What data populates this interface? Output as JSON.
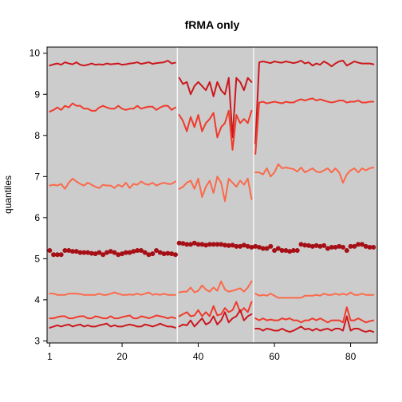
{
  "chart_data": {
    "type": "line",
    "title": "fRMA only",
    "xlabel": "",
    "ylabel": "quantiles",
    "xlim": [
      0.3,
      87
    ],
    "ylim": [
      2.95,
      10.15
    ],
    "x_ticks": [
      1,
      20,
      40,
      60,
      80
    ],
    "y_ticks": [
      3,
      4,
      5,
      6,
      7,
      8,
      9,
      10
    ],
    "x_tick_labels": [
      "1",
      "20",
      "40",
      "60",
      "80"
    ],
    "y_tick_labels": [
      "3",
      "4",
      "5",
      "6",
      "7",
      "8",
      "9",
      "10"
    ],
    "background": "#cccccc",
    "vlines": [
      34.5,
      54.5
    ],
    "vline_color": "#ffffff",
    "colors": {
      "q99": "#cb181d",
      "q90": "#ef3b2c",
      "q75": "#fb6a4a",
      "median": "#a50f15",
      "q25": "#fb6a4a",
      "q10": "#ef3b2c",
      "q01": "#cb181d"
    },
    "series": [
      {
        "key": "q99",
        "style": "line",
        "segments": [
          {
            "x_start": 1,
            "values": [
              9.7,
              9.73,
              9.75,
              9.72,
              9.78,
              9.75,
              9.73,
              9.78,
              9.72,
              9.7,
              9.72,
              9.75,
              9.72,
              9.73,
              9.72,
              9.75,
              9.73,
              9.74,
              9.75,
              9.72,
              9.73,
              9.75,
              9.76,
              9.78,
              9.74,
              9.76,
              9.78,
              9.74,
              9.76,
              9.77,
              9.78,
              9.82,
              9.75,
              9.77
            ]
          },
          {
            "x_start": 35,
            "values": [
              9.4,
              9.25,
              9.3,
              9.0,
              9.2,
              9.3,
              9.2,
              9.1,
              9.3,
              8.95,
              9.3,
              9.1,
              9.0,
              9.4,
              7.95,
              9.4,
              9.3,
              9.1,
              9.4,
              9.3
            ]
          },
          {
            "x_start": 55,
            "values": [
              7.8,
              9.78,
              9.8,
              9.78,
              9.76,
              9.8,
              9.78,
              9.77,
              9.8,
              9.78,
              9.76,
              9.78,
              9.82,
              9.75,
              9.78,
              9.7,
              9.75,
              9.72,
              9.8,
              9.75,
              9.68,
              9.75,
              9.8,
              9.82,
              9.7,
              9.75,
              9.8,
              9.77,
              9.75,
              9.75,
              9.75,
              9.73
            ]
          }
        ]
      },
      {
        "key": "q90",
        "style": "line",
        "segments": [
          {
            "x_start": 1,
            "values": [
              8.58,
              8.62,
              8.68,
              8.62,
              8.72,
              8.68,
              8.78,
              8.72,
              8.72,
              8.65,
              8.65,
              8.6,
              8.6,
              8.68,
              8.72,
              8.68,
              8.65,
              8.65,
              8.72,
              8.65,
              8.62,
              8.65,
              8.65,
              8.72,
              8.65,
              8.68,
              8.7,
              8.7,
              8.62,
              8.68,
              8.72,
              8.72,
              8.62,
              8.68
            ]
          },
          {
            "x_start": 35,
            "values": [
              8.5,
              8.35,
              8.1,
              8.45,
              8.2,
              8.5,
              8.1,
              8.3,
              8.4,
              8.55,
              7.95,
              8.2,
              8.3,
              8.6,
              7.65,
              8.5,
              8.3,
              8.4,
              8.3,
              8.6
            ]
          },
          {
            "x_start": 55,
            "values": [
              7.55,
              8.8,
              8.82,
              8.78,
              8.8,
              8.82,
              8.8,
              8.78,
              8.82,
              8.8,
              8.8,
              8.85,
              8.88,
              8.85,
              8.88,
              8.9,
              8.85,
              8.88,
              8.85,
              8.82,
              8.8,
              8.82,
              8.85,
              8.85,
              8.8,
              8.82,
              8.82,
              8.85,
              8.8,
              8.8,
              8.82,
              8.82
            ]
          }
        ]
      },
      {
        "key": "q75",
        "style": "line",
        "segments": [
          {
            "x_start": 1,
            "values": [
              6.78,
              6.8,
              6.78,
              6.82,
              6.7,
              6.85,
              6.95,
              6.88,
              6.82,
              6.78,
              6.85,
              6.8,
              6.75,
              6.72,
              6.8,
              6.78,
              6.78,
              6.72,
              6.8,
              6.75,
              6.85,
              6.72,
              6.82,
              6.8,
              6.88,
              6.82,
              6.8,
              6.85,
              6.78,
              6.82,
              6.85,
              6.82,
              6.82,
              6.88
            ]
          },
          {
            "x_start": 35,
            "values": [
              6.7,
              6.75,
              6.85,
              6.9,
              6.7,
              6.95,
              6.5,
              6.75,
              6.9,
              6.6,
              7.0,
              6.85,
              6.4,
              6.95,
              6.85,
              6.75,
              6.9,
              6.8,
              6.95,
              6.45
            ]
          },
          {
            "x_start": 55,
            "values": [
              7.1,
              7.1,
              7.05,
              7.2,
              7.0,
              7.1,
              7.3,
              7.2,
              7.22,
              7.2,
              7.18,
              7.12,
              7.22,
              7.1,
              7.15,
              7.2,
              7.12,
              7.1,
              7.15,
              7.2,
              7.1,
              7.2,
              7.1,
              6.85,
              7.05,
              7.15,
              7.2,
              7.1,
              7.2,
              7.15,
              7.2,
              7.22
            ]
          }
        ]
      },
      {
        "key": "median",
        "style": "points",
        "segments": [
          {
            "x_start": 1,
            "values": [
              5.2,
              5.1,
              5.1,
              5.1,
              5.2,
              5.2,
              5.18,
              5.18,
              5.15,
              5.15,
              5.15,
              5.13,
              5.12,
              5.15,
              5.1,
              5.15,
              5.18,
              5.15,
              5.1,
              5.12,
              5.15,
              5.15,
              5.18,
              5.2,
              5.2,
              5.15,
              5.1,
              5.12,
              5.2,
              5.15,
              5.12,
              5.13,
              5.12,
              5.1
            ]
          },
          {
            "x_start": 35,
            "values": [
              5.38,
              5.37,
              5.35,
              5.35,
              5.38,
              5.35,
              5.35,
              5.33,
              5.35,
              5.35,
              5.35,
              5.35,
              5.33,
              5.32,
              5.33,
              5.3,
              5.3,
              5.33,
              5.3,
              5.28
            ]
          },
          {
            "x_start": 55,
            "values": [
              5.3,
              5.28,
              5.25,
              5.25,
              5.3,
              5.2,
              5.25,
              5.2,
              5.2,
              5.18,
              5.2,
              5.2,
              5.35,
              5.33,
              5.32,
              5.3,
              5.32,
              5.3,
              5.32,
              5.25,
              5.28,
              5.28,
              5.3,
              5.28,
              5.2,
              5.3,
              5.3,
              5.35,
              5.35,
              5.3,
              5.28,
              5.28
            ]
          }
        ]
      },
      {
        "key": "q25",
        "style": "line",
        "segments": [
          {
            "x_start": 1,
            "values": [
              4.15,
              4.15,
              4.12,
              4.12,
              4.12,
              4.15,
              4.15,
              4.15,
              4.14,
              4.12,
              4.12,
              4.12,
              4.12,
              4.15,
              4.12,
              4.12,
              4.15,
              4.18,
              4.15,
              4.12,
              4.12,
              4.13,
              4.12,
              4.15,
              4.12,
              4.15,
              4.18,
              4.12,
              4.14,
              4.12,
              4.15,
              4.12,
              4.12,
              4.12
            ]
          },
          {
            "x_start": 35,
            "values": [
              4.18,
              4.2,
              4.2,
              4.3,
              4.18,
              4.22,
              4.35,
              4.25,
              4.2,
              4.3,
              4.22,
              4.45,
              4.25,
              4.2,
              4.22,
              4.25,
              4.28,
              4.2,
              4.3,
              4.45
            ]
          },
          {
            "x_start": 55,
            "values": [
              4.15,
              4.1,
              4.12,
              4.1,
              4.15,
              4.1,
              4.05,
              4.05,
              4.05,
              4.05,
              4.05,
              4.05,
              4.05,
              4.1,
              4.1,
              4.1,
              4.12,
              4.1,
              4.15,
              4.12,
              4.12,
              4.15,
              4.12,
              4.15,
              4.12,
              4.18,
              4.12,
              4.12,
              4.15,
              4.12,
              4.12,
              4.12
            ]
          }
        ]
      },
      {
        "key": "q10",
        "style": "line",
        "segments": [
          {
            "x_start": 1,
            "values": [
              3.55,
              3.55,
              3.58,
              3.6,
              3.6,
              3.55,
              3.55,
              3.58,
              3.6,
              3.6,
              3.55,
              3.55,
              3.6,
              3.58,
              3.55,
              3.55,
              3.6,
              3.55,
              3.55,
              3.58,
              3.6,
              3.62,
              3.55,
              3.55,
              3.6,
              3.58,
              3.55,
              3.58,
              3.62,
              3.6,
              3.58,
              3.55,
              3.58,
              3.55
            ]
          },
          {
            "x_start": 35,
            "values": [
              3.6,
              3.65,
              3.7,
              3.6,
              3.62,
              3.75,
              3.6,
              3.7,
              3.6,
              3.85,
              3.62,
              3.65,
              3.8,
              3.7,
              3.75,
              3.95,
              3.7,
              3.8,
              3.7,
              3.95
            ]
          },
          {
            "x_start": 55,
            "values": [
              3.55,
              3.5,
              3.55,
              3.5,
              3.52,
              3.5,
              3.5,
              3.55,
              3.52,
              3.55,
              3.5,
              3.5,
              3.45,
              3.5,
              3.5,
              3.55,
              3.5,
              3.55,
              3.5,
              3.45,
              3.5,
              3.5,
              3.5,
              3.45,
              3.82,
              3.5,
              3.5,
              3.55,
              3.5,
              3.45,
              3.48,
              3.5
            ]
          }
        ]
      },
      {
        "key": "q01",
        "style": "line",
        "segments": [
          {
            "x_start": 1,
            "values": [
              3.32,
              3.35,
              3.38,
              3.35,
              3.38,
              3.4,
              3.35,
              3.38,
              3.4,
              3.35,
              3.38,
              3.35,
              3.35,
              3.38,
              3.4,
              3.42,
              3.35,
              3.38,
              3.35,
              3.35,
              3.38,
              3.4,
              3.38,
              3.35,
              3.35,
              3.4,
              3.38,
              3.35,
              3.38,
              3.42,
              3.38,
              3.35,
              3.35,
              3.32
            ]
          },
          {
            "x_start": 35,
            "values": [
              3.35,
              3.4,
              3.38,
              3.5,
              3.35,
              3.45,
              3.55,
              3.4,
              3.45,
              3.6,
              3.4,
              3.5,
              3.7,
              3.45,
              3.55,
              3.6,
              3.75,
              3.5,
              3.6,
              3.65
            ]
          },
          {
            "x_start": 55,
            "values": [
              3.3,
              3.3,
              3.25,
              3.3,
              3.28,
              3.25,
              3.25,
              3.3,
              3.25,
              3.22,
              3.25,
              3.3,
              3.35,
              3.28,
              3.3,
              3.25,
              3.3,
              3.25,
              3.28,
              3.3,
              3.25,
              3.3,
              3.3,
              3.25,
              3.6,
              3.25,
              3.3,
              3.3,
              3.25,
              3.22,
              3.25,
              3.22
            ]
          }
        ]
      }
    ]
  }
}
